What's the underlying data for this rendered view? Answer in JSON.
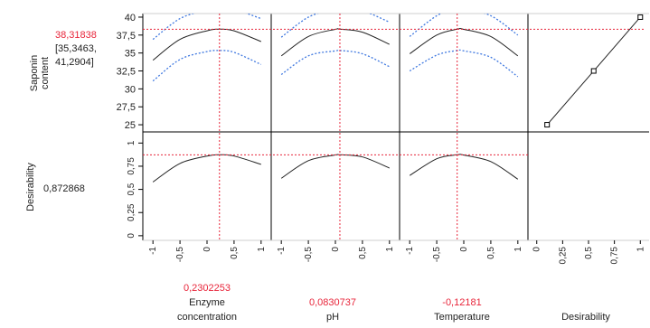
{
  "colors": {
    "response_curve": "#222222",
    "confidence_band": "#3f78e0",
    "current_value_marker": "#e8253a",
    "grid_lines": "#000000"
  },
  "responses": {
    "saponin": {
      "label_line1": "Saponin",
      "label_line2": "content",
      "current_value": "38,31838",
      "interval_line1": "[35,3463,",
      "interval_line2": "41,2904]"
    },
    "desirability": {
      "label": "Desirability",
      "current_value": "0,872868"
    }
  },
  "factors": [
    {
      "name_line1": "Enzyme",
      "name_line2": "concentration",
      "current_value": "0,2302253"
    },
    {
      "name_line1": "",
      "name_line2": "pH",
      "current_value": "0,0830737"
    },
    {
      "name_line1": "",
      "name_line2": "Temperature",
      "current_value": "-0,12181"
    },
    {
      "name_line1": "",
      "name_line2": "Desirability",
      "current_value": ""
    }
  ],
  "chart_data": {
    "type": "line",
    "title": "",
    "saponin_axis": {
      "ylim": [
        24,
        40.5
      ],
      "ticks": [
        25,
        27.5,
        30,
        32.5,
        35,
        37.5,
        40
      ],
      "tick_labels": [
        "25",
        "27,5",
        "30",
        "32,5",
        "35",
        "37,5",
        "40"
      ]
    },
    "desirability_axis": {
      "ylim": [
        -0.05,
        1.12
      ],
      "ticks": [
        0,
        0.25,
        0.5,
        0.75,
        1
      ],
      "tick_labels": [
        "0",
        "0,25",
        "0,5",
        "0,75",
        "1"
      ]
    },
    "factor_axis": {
      "xlim": [
        -1.12,
        1.12
      ],
      "ticks": [
        -1,
        -0.5,
        0,
        0.5,
        1
      ],
      "tick_labels": [
        "-1",
        "-0,5",
        "0",
        "0,5",
        "1"
      ]
    },
    "desirability_x_axis": {
      "xlim": [
        -0.05,
        1.05
      ],
      "ticks": [
        0,
        0.25,
        0.5,
        0.75,
        1
      ],
      "tick_labels": [
        "0",
        "0,25",
        "0,5",
        "0,75",
        "1"
      ]
    },
    "factor_panels": [
      {
        "factor": "Enzyme concentration",
        "current_x": 0.2302253,
        "saponin_fit": {
          "x": [
            -1,
            -0.5,
            0,
            0.23,
            0.5,
            1
          ],
          "y": [
            34.0,
            36.9,
            38.1,
            38.32,
            38.1,
            36.6
          ]
        },
        "saponin_lower": {
          "x": [
            -1,
            -0.5,
            0,
            0.23,
            0.5,
            1
          ],
          "y": [
            31.1,
            34.1,
            35.2,
            35.35,
            35.1,
            33.4
          ]
        },
        "saponin_upper": {
          "x": [
            -1,
            -0.5,
            0,
            0.23,
            0.5,
            1
          ],
          "y": [
            36.9,
            39.8,
            41.0,
            41.29,
            41.1,
            39.8
          ]
        },
        "desirability": {
          "x": [
            -1,
            -0.5,
            0,
            0.23,
            0.5,
            1
          ],
          "y": [
            0.58,
            0.78,
            0.86,
            0.873,
            0.86,
            0.77
          ]
        }
      },
      {
        "factor": "pH",
        "current_x": 0.0830737,
        "saponin_fit": {
          "x": [
            -1,
            -0.5,
            0,
            0.083,
            0.5,
            1
          ],
          "y": [
            34.6,
            37.3,
            38.3,
            38.32,
            37.9,
            36.2
          ]
        },
        "saponin_lower": {
          "x": [
            -1,
            -0.5,
            0,
            0.083,
            0.5,
            1
          ],
          "y": [
            32.0,
            34.6,
            35.3,
            35.35,
            34.9,
            33.1
          ]
        },
        "saponin_upper": {
          "x": [
            -1,
            -0.5,
            0,
            0.083,
            0.5,
            1
          ],
          "y": [
            37.2,
            40.0,
            41.2,
            41.29,
            40.9,
            39.3
          ]
        },
        "desirability": {
          "x": [
            -1,
            -0.5,
            0,
            0.083,
            0.5,
            1
          ],
          "y": [
            0.62,
            0.81,
            0.871,
            0.873,
            0.85,
            0.73
          ]
        }
      },
      {
        "factor": "Temperature",
        "current_x": -0.12181,
        "saponin_fit": {
          "x": [
            -1,
            -0.5,
            -0.12,
            0,
            0.5,
            1
          ],
          "y": [
            34.9,
            37.5,
            38.32,
            38.3,
            37.3,
            34.6
          ]
        },
        "saponin_lower": {
          "x": [
            -1,
            -0.5,
            -0.12,
            0,
            0.5,
            1
          ],
          "y": [
            32.5,
            34.7,
            35.35,
            35.3,
            34.4,
            31.7
          ]
        },
        "saponin_upper": {
          "x": [
            -1,
            -0.5,
            -0.12,
            0,
            0.5,
            1
          ],
          "y": [
            37.3,
            40.2,
            41.29,
            41.2,
            40.2,
            37.5
          ]
        },
        "desirability": {
          "x": [
            -1,
            -0.5,
            -0.12,
            0,
            0.5,
            1
          ],
          "y": [
            0.65,
            0.83,
            0.873,
            0.87,
            0.8,
            0.61
          ]
        }
      }
    ],
    "desirability_function": {
      "x": [
        0.1,
        0.55,
        1.0
      ],
      "y": [
        25,
        32.5,
        40
      ],
      "current_y": 38.31838
    }
  }
}
